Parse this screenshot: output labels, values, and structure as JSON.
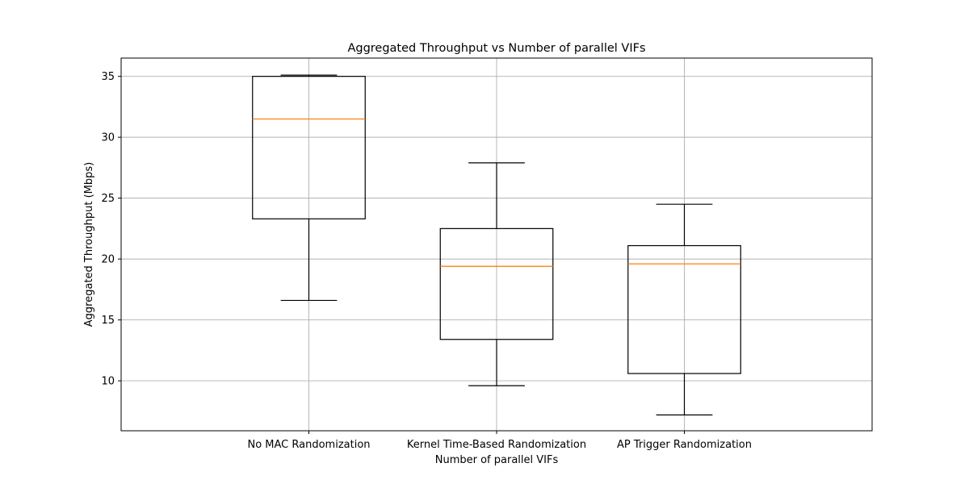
{
  "chart_data": {
    "type": "box",
    "title": "Aggregated Throughput vs Number of parallel VIFs",
    "xlabel": "Number of parallel VIFs",
    "ylabel": "Aggregated Throughput (Mbps)",
    "ylim": [
      5.9,
      36.5
    ],
    "yticks": [
      10,
      15,
      20,
      25,
      30,
      35
    ],
    "grid": true,
    "categories": [
      "No MAC Randomization",
      "Kernel Time-Based Randomization",
      "AP Trigger Randomization"
    ],
    "boxes": [
      {
        "whisker_low": 16.6,
        "q1": 23.3,
        "median": 31.5,
        "q3": 35.0,
        "whisker_high": 35.1
      },
      {
        "whisker_low": 9.6,
        "q1": 13.4,
        "median": 19.4,
        "q3": 22.5,
        "whisker_high": 27.9
      },
      {
        "whisker_low": 7.2,
        "q1": 10.6,
        "median": 19.6,
        "q3": 21.1,
        "whisker_high": 24.5
      }
    ],
    "colors": {
      "box": "#000000",
      "median": "#ff7f0e",
      "grid": "#b0b0b0"
    }
  }
}
